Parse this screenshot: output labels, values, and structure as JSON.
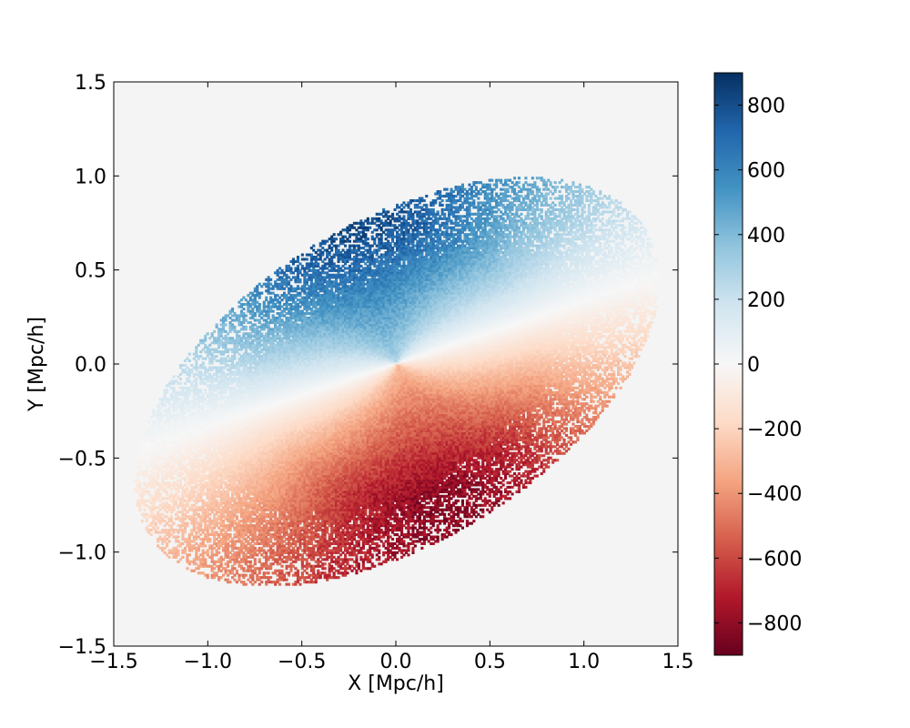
{
  "chart_data": {
    "type": "heatmap",
    "title": "",
    "xlabel": "X [Mpc/h]",
    "ylabel": "Y [Mpc/h]",
    "xlim": [
      -1.5,
      1.5
    ],
    "ylim": [
      -1.5,
      1.5
    ],
    "x_ticks": [
      -1.5,
      -1.0,
      -0.5,
      0.0,
      0.5,
      1.0,
      1.5
    ],
    "y_ticks": [
      -1.5,
      -1.0,
      -0.5,
      0.0,
      0.5,
      1.0,
      1.5
    ],
    "x_tick_labels": [
      "−1.5",
      "−1.0",
      "−0.5",
      "0.0",
      "0.5",
      "1.0",
      "1.5"
    ],
    "y_tick_labels": [
      "−1.5",
      "−1.0",
      "−0.5",
      "0.0",
      "0.5",
      "1.0",
      "1.5"
    ],
    "grid": false,
    "background_color": "#f4f4f4",
    "colormap": "RdBu",
    "colorbar": {
      "range": [
        -900,
        900
      ],
      "ticks": [
        800,
        600,
        400,
        200,
        0,
        -200,
        -400,
        -600,
        -800
      ],
      "tick_labels": [
        "800",
        "600",
        "400",
        "200",
        "0",
        "−200",
        "−400",
        "−600",
        "−800"
      ],
      "colors": [
        "#67001f",
        "#b2182b",
        "#d6604d",
        "#f4a582",
        "#fddbc7",
        "#f7f7f7",
        "#d1e5f0",
        "#92c5de",
        "#4393c3",
        "#2166ac",
        "#053061"
      ]
    },
    "field": {
      "center": [
        0.0,
        0.0
      ],
      "description_of_pattern": "rotating halo: positive values upper-left, negative values lower-right",
      "max_abs_value": 900
    }
  }
}
